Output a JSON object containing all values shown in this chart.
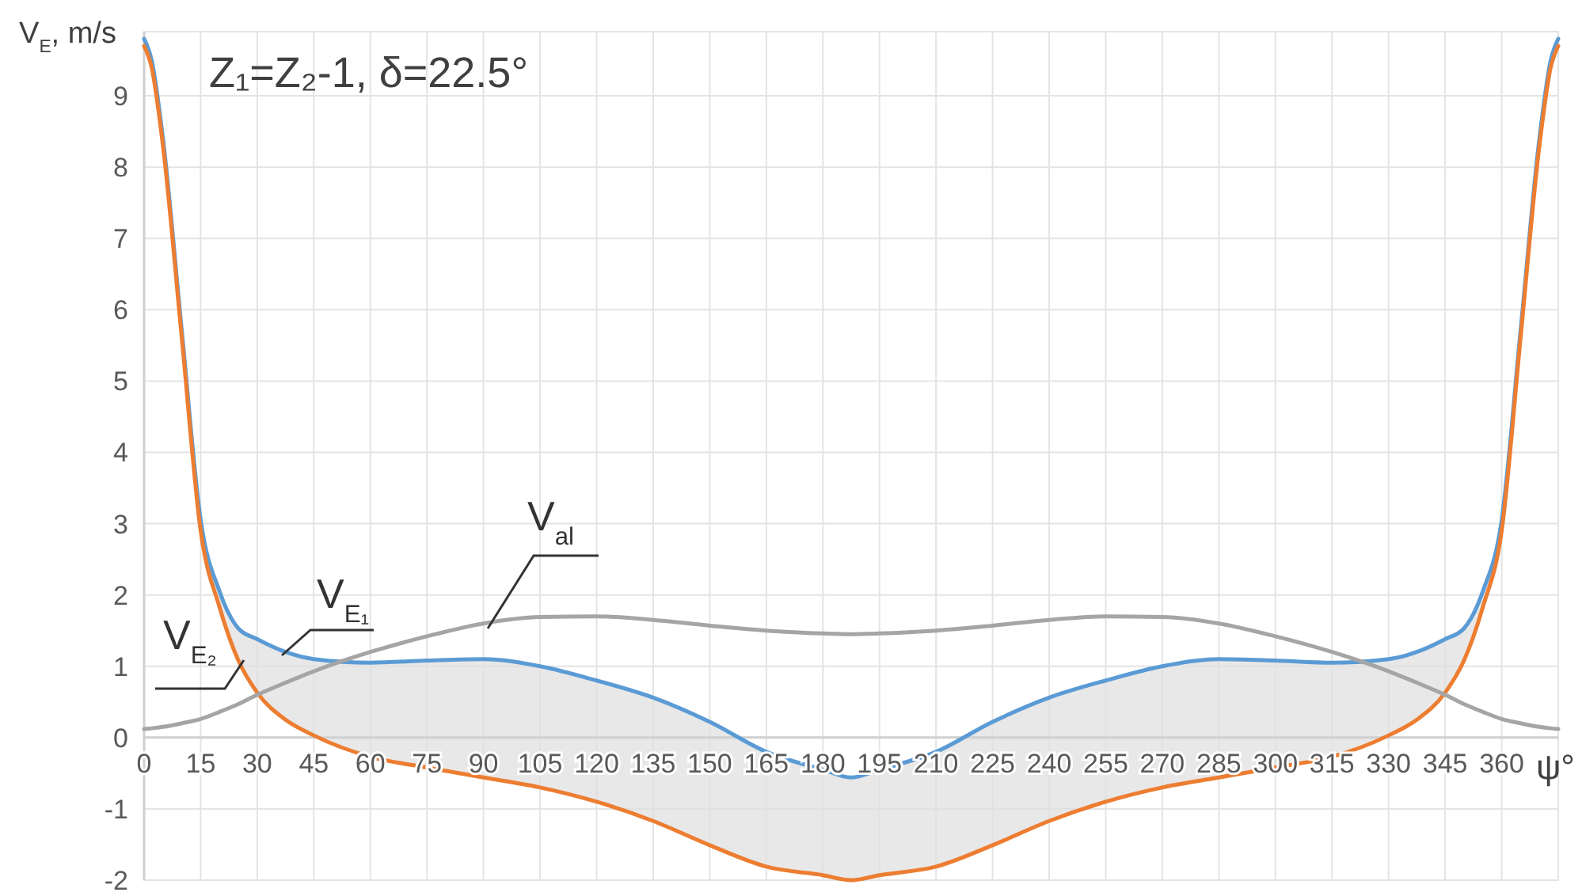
{
  "chart_data": {
    "type": "line",
    "xlabel": "ψ°",
    "ylabel": "V$_{E}$, m/s",
    "annotations": [
      "Z₁=Z₂-1, δ=22.5°"
    ],
    "x": [
      0,
      2,
      5,
      10,
      15,
      20,
      25,
      30,
      37.5,
      45,
      60,
      75,
      90,
      105,
      120,
      135,
      150,
      165,
      180,
      187.5,
      195,
      210,
      225,
      240,
      255,
      270,
      285,
      300,
      315,
      330,
      337.5,
      345,
      350,
      355,
      360,
      365,
      370,
      373,
      375
    ],
    "xlim": [
      0,
      375
    ],
    "xticks": [
      0,
      15,
      30,
      45,
      60,
      75,
      90,
      105,
      120,
      135,
      150,
      165,
      180,
      195,
      210,
      225,
      240,
      255,
      270,
      285,
      300,
      315,
      330,
      345,
      360
    ],
    "ylim": [
      -2,
      9.9
    ],
    "yticks": [
      -2,
      -1,
      0,
      1,
      2,
      3,
      4,
      5,
      6,
      7,
      8,
      9
    ],
    "grid": true,
    "marker": "none",
    "line_style": "solid",
    "series": [
      {
        "name": "V$_{E₁}$",
        "color": "#5b9bd5",
        "values": [
          9.8,
          9.5,
          8.4,
          5.7,
          3.05,
          2.05,
          1.53,
          1.38,
          1.2,
          1.1,
          1.05,
          1.08,
          1.1,
          1.0,
          0.8,
          0.56,
          0.22,
          -0.2,
          -0.45,
          -0.56,
          -0.45,
          -0.2,
          0.22,
          0.56,
          0.8,
          1.0,
          1.1,
          1.08,
          1.05,
          1.1,
          1.2,
          1.38,
          1.53,
          2.05,
          3.05,
          5.7,
          8.4,
          9.5,
          9.8
        ],
        "upper": [
          9.8,
          9.5,
          8.4,
          5.7,
          3.05,
          2.05,
          1.53,
          1.38,
          1.2,
          1.1,
          1.05,
          1.08,
          1.1,
          1.0,
          0.8,
          0.56,
          0.22,
          -0.2,
          -0.45,
          -0.56,
          -0.45,
          -0.2,
          0.22,
          0.56,
          0.8,
          1.0,
          1.1,
          1.08,
          1.05,
          1.1,
          1.2,
          1.38,
          1.53,
          2.05,
          3.05,
          5.7,
          8.4,
          9.5,
          9.8
        ],
        "lower": [
          9.7,
          9.4,
          8.3,
          5.6,
          2.9,
          1.83,
          1.08,
          0.63,
          0.25,
          0.03,
          -0.27,
          -0.42,
          -0.56,
          -0.7,
          -0.9,
          -1.17,
          -1.51,
          -1.81,
          -1.93,
          -2.0,
          -1.93,
          -1.81,
          -1.51,
          -1.17,
          -0.9,
          -0.7,
          -0.56,
          -0.42,
          -0.27,
          0.03,
          0.25,
          0.63,
          1.08,
          1.83,
          2.9,
          5.6,
          8.3,
          9.4,
          9.7
        ]
      },
      {
        "name": "V$_{E₂}$",
        "color": "#ed7d31",
        "values": [
          9.7,
          9.4,
          8.3,
          5.6,
          2.9,
          1.83,
          1.08,
          0.63,
          0.25,
          0.03,
          -0.27,
          -0.42,
          -0.56,
          -0.7,
          -0.9,
          -1.17,
          -1.51,
          -1.81,
          -1.93,
          -2.0,
          -1.93,
          -1.81,
          -1.51,
          -1.17,
          -0.9,
          -0.7,
          -0.56,
          -0.42,
          -0.27,
          0.03,
          0.25,
          0.63,
          1.08,
          1.83,
          2.9,
          5.6,
          8.3,
          9.4,
          9.7
        ]
      },
      {
        "name": "V$_{al}$",
        "color": "#a5a5a5",
        "values": [
          0.12,
          0.13,
          0.15,
          0.2,
          0.26,
          0.36,
          0.47,
          0.6,
          0.77,
          0.93,
          1.2,
          1.42,
          1.6,
          1.69,
          1.7,
          1.65,
          1.57,
          1.5,
          1.46,
          1.45,
          1.46,
          1.5,
          1.57,
          1.65,
          1.7,
          1.69,
          1.6,
          1.42,
          1.2,
          0.93,
          0.77,
          0.6,
          0.47,
          0.36,
          0.26,
          0.2,
          0.15,
          0.13,
          0.12
        ]
      }
    ]
  }
}
